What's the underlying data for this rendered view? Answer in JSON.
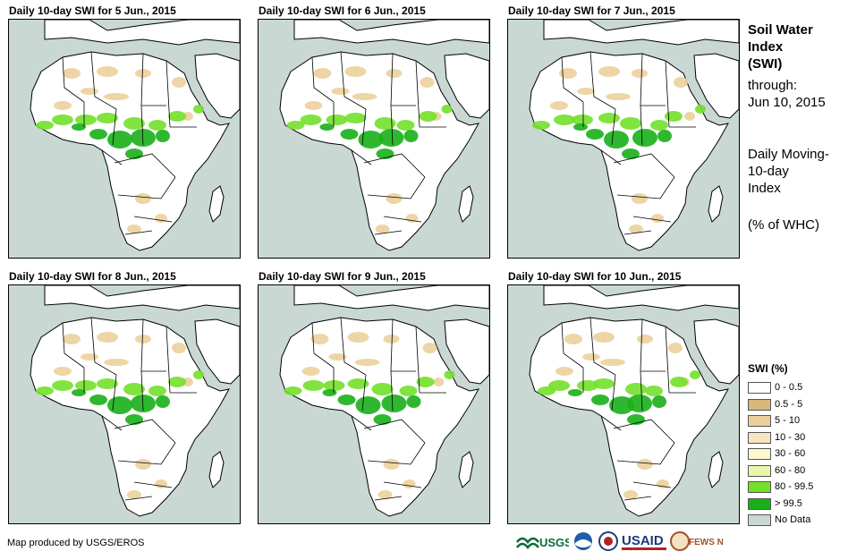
{
  "panels": [
    {
      "title": "Daily 10-day  SWI for 5 Jun., 2015"
    },
    {
      "title": "Daily 10-day  SWI for 6 Jun., 2015"
    },
    {
      "title": "Daily 10-day  SWI for 7 Jun., 2015"
    },
    {
      "title": "Daily 10-day  SWI for 8 Jun., 2015"
    },
    {
      "title": "Daily 10-day  SWI for 9 Jun., 2015"
    },
    {
      "title": "Daily 10-day  SWI for 10 Jun., 2015"
    }
  ],
  "side": {
    "title_line1": "Soil Water",
    "title_line2": "Index",
    "title_line3": "(SWI)",
    "through_label": "through:",
    "through_date": "Jun 10, 2015",
    "desc_line1": "Daily Moving-",
    "desc_line2": "10-day",
    "desc_line3": "Index",
    "units": "(% of WHC)"
  },
  "legend": {
    "title": "SWI (%)",
    "items": [
      {
        "label": "0 - 0.5",
        "color": "#ffffff"
      },
      {
        "label": "0.5 - 5",
        "color": "#d8b878"
      },
      {
        "label": "5 - 10",
        "color": "#ebd09c"
      },
      {
        "label": "10 - 30",
        "color": "#f7e4c2"
      },
      {
        "label": "30 - 60",
        "color": "#fbf7d0"
      },
      {
        "label": "60 - 80",
        "color": "#e8f7a8"
      },
      {
        "label": "80 - 99.5",
        "color": "#73e02a"
      },
      {
        "label": "> 99.5",
        "color": "#18b018"
      },
      {
        "label": "No Data",
        "color": "#c9d8d3"
      }
    ]
  },
  "footer": {
    "credit": "Map produced by USGS/EROS",
    "logo_usgs": "USGS",
    "logo_usaid": "USAID",
    "logo_fews": "FEWS NET"
  },
  "colors": {
    "ocean": "#c9d8d3",
    "land": "#ffffff",
    "dry": "#ebd09c",
    "wet": "#73e02a",
    "saturated": "#18b018"
  }
}
